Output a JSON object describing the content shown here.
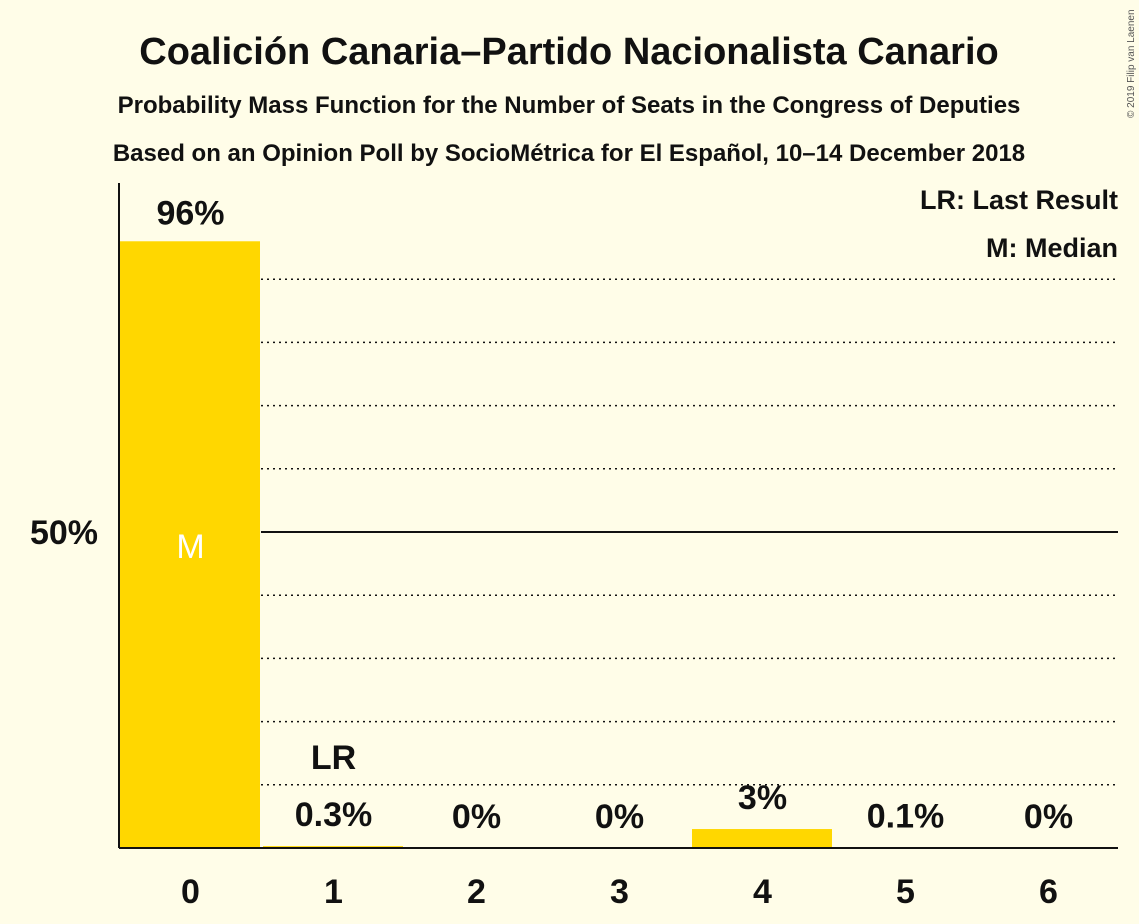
{
  "chart_data": {
    "type": "bar",
    "title": "Coalición Canaria–Partido Nacionalista Canario",
    "subtitle": "Probability Mass Function for the Number of Seats in the Congress of Deputies",
    "subtitle2": "Based on an Opinion Poll by SocioMétrica for El Español, 10–14 December 2018",
    "categories": [
      "0",
      "1",
      "2",
      "3",
      "4",
      "5",
      "6"
    ],
    "values": [
      96,
      0.3,
      0,
      0,
      3,
      0.1,
      0
    ],
    "value_labels": [
      "96%",
      "0.3%",
      "0%",
      "0%",
      "3%",
      "0.1%",
      "0%"
    ],
    "ylim": [
      0,
      105
    ],
    "ytick_label": "50%",
    "ytick_value": 50,
    "minor_gridlines": [
      10,
      20,
      30,
      40,
      60,
      70,
      80,
      90
    ],
    "median_category": "0",
    "median_marker": "M",
    "last_result_category": "1",
    "last_result_marker": "LR",
    "legend": [
      "LR: Last Result",
      "M: Median"
    ],
    "legend_position": "top-right",
    "bar_color": "#ffd700",
    "copyright": "© 2019 Filip van Laenen"
  }
}
